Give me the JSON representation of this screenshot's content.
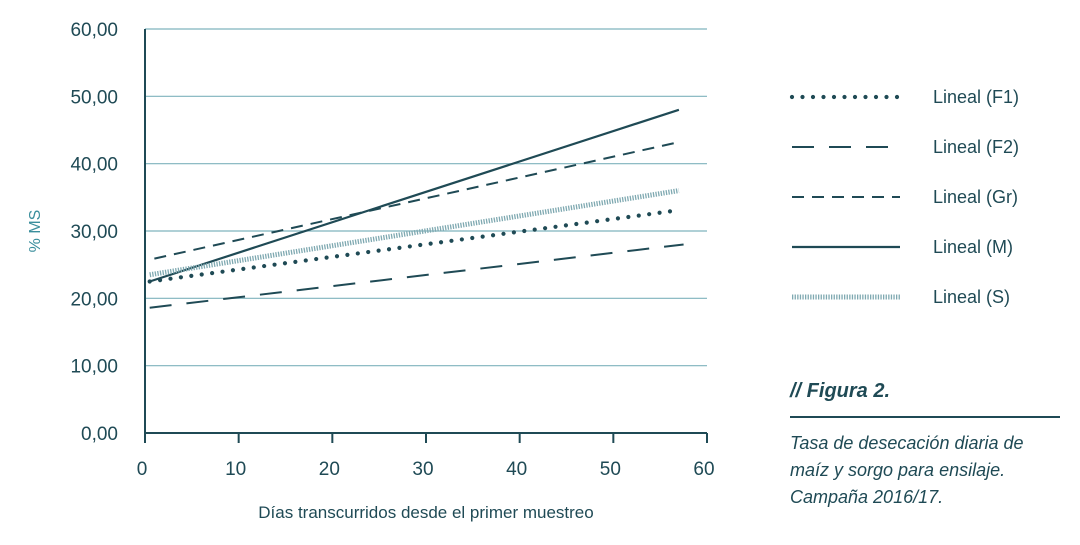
{
  "chart_data": {
    "type": "line",
    "xlabel": "Días transcurridos desde el primer muestreo",
    "ylabel": "% MS",
    "xlim": [
      0,
      60
    ],
    "ylim": [
      0,
      60
    ],
    "x_ticks": [
      "0",
      "10",
      "20",
      "30",
      "40",
      "50",
      "60"
    ],
    "y_ticks": [
      "0,00",
      "10,00",
      "20,00",
      "30,00",
      "40,00",
      "50,00",
      "60,00"
    ],
    "grid": "horizontal",
    "legend_position": "right",
    "series": [
      {
        "name": "Lineal (F1)",
        "style": "dotted",
        "color": "#1f4a55",
        "x": [
          0.5,
          56.5
        ],
        "y": [
          22.5,
          33.0
        ]
      },
      {
        "name": "Lineal (F2)",
        "style": "long-dash",
        "color": "#1f4a55",
        "x": [
          0.5,
          57.5
        ],
        "y": [
          18.6,
          28.0
        ]
      },
      {
        "name": "Lineal (Gr)",
        "style": "dash",
        "color": "#1f4a55",
        "x": [
          1.0,
          57.0
        ],
        "y": [
          25.9,
          43.2
        ]
      },
      {
        "name": "Lineal (M)",
        "style": "solid",
        "color": "#1f4a55",
        "x": [
          0.5,
          57.0
        ],
        "y": [
          22.5,
          48.0
        ]
      },
      {
        "name": "Lineal (S)",
        "style": "hatched",
        "color": "#7fa9b1",
        "x": [
          0.5,
          57.0
        ],
        "y": [
          23.5,
          36.0
        ]
      }
    ]
  },
  "caption": {
    "figure_label": "// Figura 2.",
    "text": "Tasa de desecación diaria de maíz y sorgo para ensilaje. Campaña 2016/17."
  }
}
